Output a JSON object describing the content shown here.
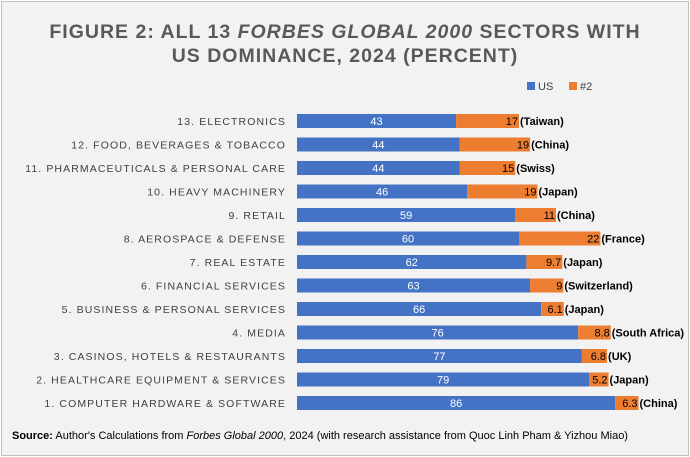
{
  "title": {
    "part1": "FIGURE 2: ALL 13 ",
    "part2_italic": "FORBES GLOBAL 2000",
    "part3": " SECTORS WITH",
    "line2": "US DOMINANCE, 2024 (PERCENT)"
  },
  "chart_data": {
    "type": "bar",
    "orientation": "horizontal",
    "stacked": true,
    "legend": {
      "position": "top-right"
    },
    "colors": {
      "US": "#4472c4",
      "#2": "#ed7d31"
    },
    "categories": [
      "13. ELECTRONICS",
      "12. FOOD, BEVERAGES & TOBACCO",
      "11. PHARMACEUTICALS & PERSONAL CARE",
      "10. HEAVY MACHINERY",
      "9. RETAIL",
      "8. AEROSPACE & DEFENSE",
      "7. REAL ESTATE",
      "6. FINANCIAL SERVICES",
      "5. BUSINESS & PERSONAL SERVICES",
      "4. MEDIA",
      "3. CASINOS, HOTELS & RESTAURANTS",
      "2. HEALTHCARE EQUIPMENT & SERVICES",
      "1. COMPUTER HARDWARE & SOFTWARE"
    ],
    "series": [
      {
        "name": "US",
        "values": [
          43,
          44,
          44,
          46,
          59,
          60,
          62,
          63,
          66,
          76,
          77,
          79,
          86
        ]
      },
      {
        "name": "#2",
        "values": [
          17,
          19,
          15,
          19,
          11,
          22,
          9.7,
          9,
          6.1,
          8.8,
          6.8,
          5.2,
          6.3
        ]
      }
    ],
    "second_countries": [
      "Taiwan",
      "China",
      "Swiss",
      "Japan",
      "China",
      "France",
      "Japan",
      "Switzerland",
      "Japan",
      "South Africa",
      "UK",
      "Japan",
      "China"
    ],
    "xlim": [
      0,
      100
    ],
    "grid": false
  },
  "source": {
    "label": "Source:",
    "text1": " Author's Calculations from ",
    "italic": "Forbes Global 2000",
    "text2": ", 2024 (with research assistance from Quoc Linh Pham & Yizhou Miao)"
  }
}
